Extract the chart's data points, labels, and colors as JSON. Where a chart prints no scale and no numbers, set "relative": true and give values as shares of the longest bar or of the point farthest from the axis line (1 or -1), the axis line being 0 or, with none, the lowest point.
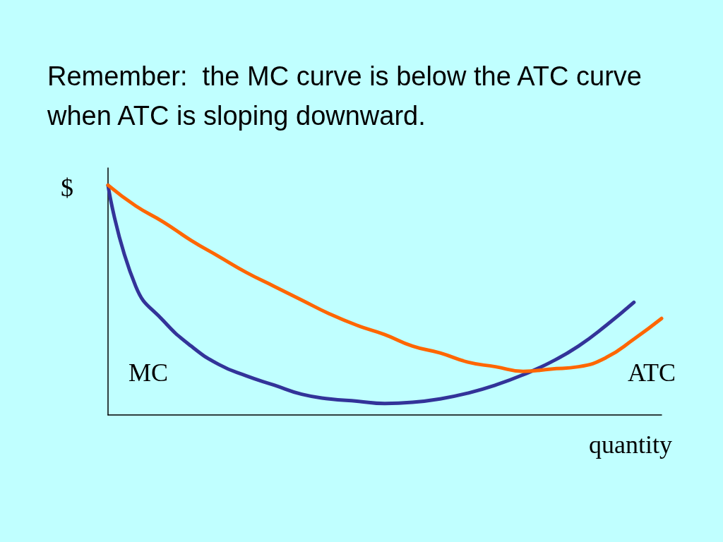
{
  "chart_data": {
    "type": "line",
    "title": "Remember:  the MC curve is below the ATC curve when ATC is sloping downward.",
    "xlabel": "quantity",
    "ylabel": "$",
    "relative": true,
    "legend": false,
    "grid": false,
    "marker": "none",
    "line_style": "solid",
    "categories": [
      null,
      null,
      null,
      null,
      null,
      null,
      null,
      null,
      null,
      null,
      null,
      null,
      null,
      null,
      null,
      null,
      null,
      null,
      null,
      null,
      null
    ],
    "series": [
      {
        "name": "MC",
        "color": "#333399",
        "values": [
          1.0,
          0.56,
          0.41,
          0.3,
          0.22,
          0.17,
          0.13,
          0.09,
          0.07,
          0.06,
          0.05,
          0.055,
          0.07,
          0.095,
          0.13,
          0.175,
          0.23,
          0.3,
          0.39,
          0.49,
          null
        ]
      },
      {
        "name": "ATC",
        "color": "#ff6600",
        "values": [
          1.0,
          0.91,
          0.84,
          0.76,
          0.69,
          0.62,
          0.56,
          0.5,
          0.44,
          0.39,
          0.35,
          0.3,
          0.27,
          0.23,
          0.21,
          0.19,
          0.2,
          0.21,
          0.25,
          0.33,
          0.42
        ]
      }
    ]
  }
}
